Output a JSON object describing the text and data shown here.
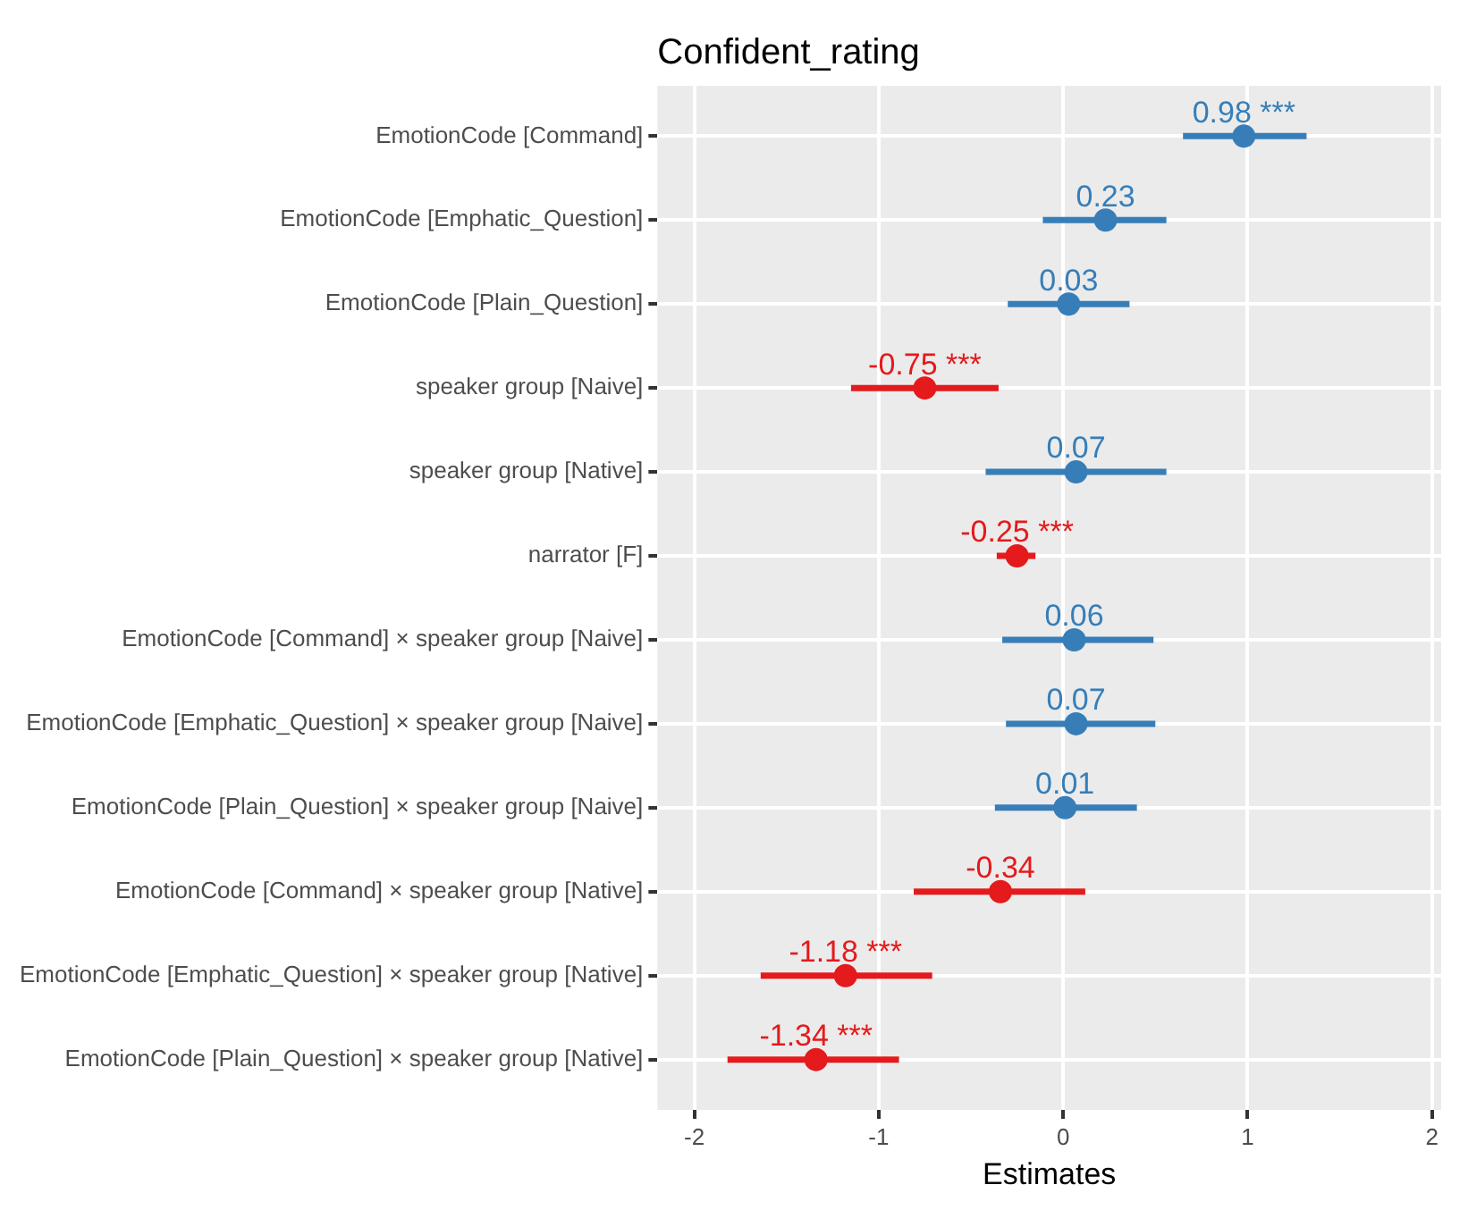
{
  "chart_data": {
    "type": "scatter",
    "orientation": "horizontal",
    "title": "Confident_rating",
    "xlabel": "Estimates",
    "categories": [
      "EmotionCode [Command]",
      "EmotionCode [Emphatic_Question]",
      "EmotionCode [Plain_Question]",
      "speaker group [Naive]",
      "speaker group [Native]",
      "narrator [F]",
      "EmotionCode [Command] × speaker group [Naive]",
      "EmotionCode [Emphatic_Question] × speaker group [Naive]",
      "EmotionCode [Plain_Question] × speaker group [Naive]",
      "EmotionCode [Command] × speaker group [Native]",
      "EmotionCode [Emphatic_Question] × speaker group [Native]",
      "EmotionCode [Plain_Question] × speaker group [Native]"
    ],
    "values": [
      0.98,
      0.23,
      0.03,
      -0.75,
      0.07,
      -0.25,
      0.06,
      0.07,
      0.01,
      -0.34,
      -1.18,
      -1.34
    ],
    "errors": [
      [
        0.65,
        1.32
      ],
      [
        -0.11,
        0.56
      ],
      [
        -0.3,
        0.36
      ],
      [
        -1.15,
        -0.35
      ],
      [
        -0.42,
        0.56
      ],
      [
        -0.36,
        -0.15
      ],
      [
        -0.33,
        0.49
      ],
      [
        -0.31,
        0.5
      ],
      [
        -0.37,
        0.4
      ],
      [
        -0.81,
        0.12
      ],
      [
        -1.64,
        -0.71
      ],
      [
        -1.82,
        -0.89
      ]
    ],
    "value_labels": [
      "0.98 ***",
      "0.23",
      "0.03",
      "-0.75 ***",
      "0.07",
      "-0.25 ***",
      "0.06",
      "0.07",
      "0.01",
      "-0.34",
      "-1.18 ***",
      "-1.34 ***"
    ],
    "colors": [
      "#377eb8",
      "#377eb8",
      "#377eb8",
      "#e41a1c",
      "#377eb8",
      "#e41a1c",
      "#377eb8",
      "#377eb8",
      "#377eb8",
      "#e41a1c",
      "#e41a1c",
      "#e41a1c"
    ],
    "xlim": [
      -2.2,
      2.05
    ],
    "xticks": [
      -2,
      -1,
      0,
      1,
      2
    ],
    "grid": true,
    "legend": false,
    "marker": "circle"
  }
}
